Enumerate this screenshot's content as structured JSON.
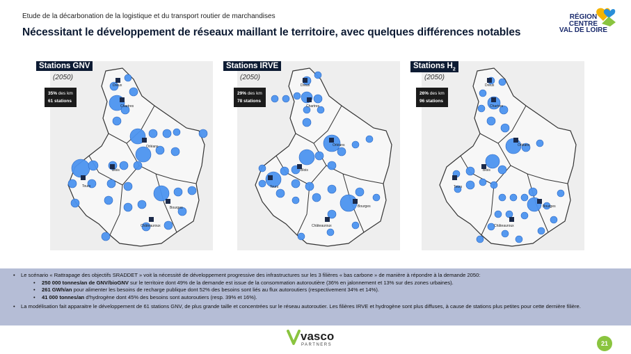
{
  "header": {
    "subtitle": "Etude de la décarbonation de la logistique et du transport routier de marchandises",
    "title": "Nécessitant le développement de réseaux maillant le territoire, avec quelques différences notables"
  },
  "logo": {
    "line1": "RÉGION",
    "line2": "CENTRE",
    "line3": "VAL DE LOIRE"
  },
  "maps": [
    {
      "title": "Stations GNV",
      "year": "(2050)",
      "share": "35%",
      "share_text": " des km",
      "stations": "61 stations"
    },
    {
      "title": "Stations IRVE",
      "year": "(2050)",
      "share": "29%",
      "share_text": " des km",
      "stations": "78 stations"
    },
    {
      "title": "Stations H",
      "title_sub": "2",
      "year": "(2050)",
      "share": "26%",
      "share_text": " des km",
      "stations": "96 stations"
    }
  ],
  "cities": {
    "dreux": "Dreux",
    "chartres": "Chartres",
    "orleans": "Orléans",
    "blois": "Blois",
    "tours": "Tours",
    "bourges": "Bourges",
    "chateauroux": "Châteauroux"
  },
  "bullets": {
    "b1": "Le scénario « Rattrapage des objectifs SRADDET » voit la nécessité de développement progressive des infrastructures sur les 3 filières « bas carbone » de manière à répondre à la demande 2050:",
    "s1_bold": "250 000 tonnes/an de GNV/bioGNV",
    "s1_rest": " sur le territoire dont 49% de la demande est issue de la consommation autoroutière (36% en jalonnement et 13% sur des zones urbaines).",
    "s2_bold": "261 GWh/an",
    "s2_rest": " pour alimenter les besoins de recharge publique dont 52% des besoins sont liés au flux autoroutiers (respectivement 34% et 14%).",
    "s3_bold": "41 000 tonnes/an",
    "s3_rest": " d'hydrogène dont 45% des besoins sont autoroutiers (resp. 39% et 16%).",
    "b2": "La modélisation fait apparaitre le développement de 61 stations GNV, de plus grande taille et concentrées sur le réseau autoroutier. Les filières IRVE et hydrogène sont plus diffuses, à cause de stations plus petites pour cette dernière filière."
  },
  "footer": {
    "brand": "vasco",
    "tagline": "PARTNERS",
    "page": "21"
  },
  "colors": {
    "station": "#4d94f0",
    "station_stroke": "#1f5fc0",
    "navy": "#0d1b33",
    "band": "#b5bdd6",
    "page_badge": "#8ac43f"
  }
}
